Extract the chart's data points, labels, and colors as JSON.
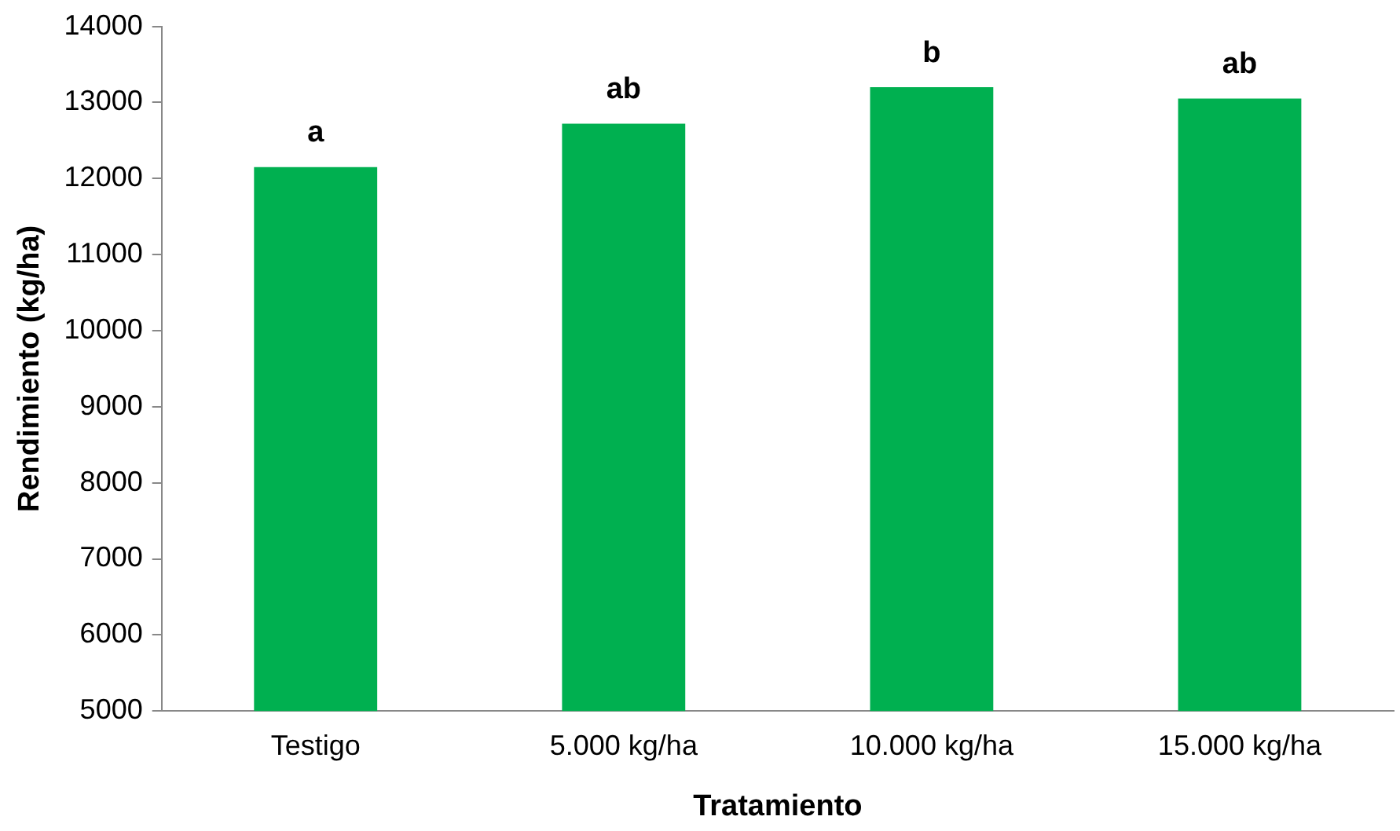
{
  "chart_data": {
    "type": "bar",
    "xlabel": "Tratamiento",
    "ylabel": "Rendimiento (kg/ha)",
    "categories": [
      "Testigo",
      "5.000 kg/ha",
      "10.000 kg/ha",
      "15.000 kg/ha"
    ],
    "values": [
      12150,
      12720,
      13200,
      13050
    ],
    "color": "#00b050",
    "ylim": [
      5000,
      14000
    ],
    "yticks": [
      5000,
      6000,
      7000,
      8000,
      9000,
      10000,
      11000,
      12000,
      13000,
      14000
    ],
    "grid": false,
    "legend": false,
    "annotations": [
      {
        "text": "a",
        "x": "Testigo",
        "y": 12150
      },
      {
        "text": "ab",
        "x": "5.000 kg/ha",
        "y": 12720
      },
      {
        "text": "b",
        "x": "10.000 kg/ha",
        "y": 13200
      },
      {
        "text": "ab",
        "x": "15.000 kg/ha",
        "y": 13050
      }
    ]
  }
}
